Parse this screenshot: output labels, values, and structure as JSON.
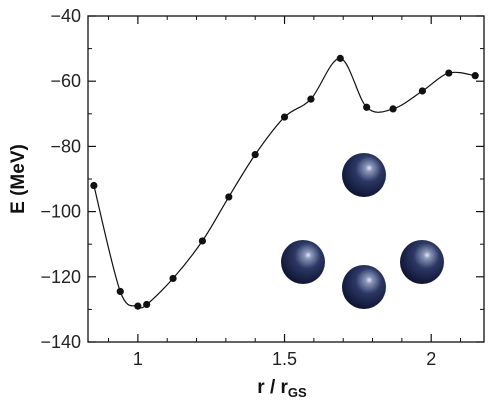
{
  "chart_data": {
    "type": "line",
    "xlabel": "r / r",
    "xlabel_subscript": "GS",
    "ylabel": "E (MeV)",
    "xlim": [
      0.83,
      2.18
    ],
    "ylim": [
      -140,
      -40
    ],
    "xticks": [
      1,
      1.5,
      2
    ],
    "xtick_labels": [
      "1",
      "1.5",
      "2"
    ],
    "yticks": [
      -140,
      -120,
      -100,
      -80,
      -60,
      -40
    ],
    "ytick_labels": [
      "−140",
      "−120",
      "−100",
      "−80",
      "−60",
      "−40"
    ],
    "grid": false,
    "series": [
      {
        "x": [
          0.85,
          0.94,
          1.0,
          1.03,
          1.12,
          1.22,
          1.31,
          1.4,
          1.5,
          1.59,
          1.69,
          1.78,
          1.87,
          1.97,
          2.06,
          2.15
        ],
        "y": [
          -92,
          -124.5,
          -129,
          -128.5,
          -120.5,
          -109,
          -95.5,
          -82.5,
          -71,
          -65.5,
          -53,
          -68,
          -68.5,
          -63,
          -57.5,
          -58.3
        ]
      }
    ],
    "inset_illustration": {
      "description_icon": "four-alpha-cluster-spheres",
      "sphere_color": "#1f2a4e",
      "sphere_highlight": "#cfd6ea"
    }
  }
}
